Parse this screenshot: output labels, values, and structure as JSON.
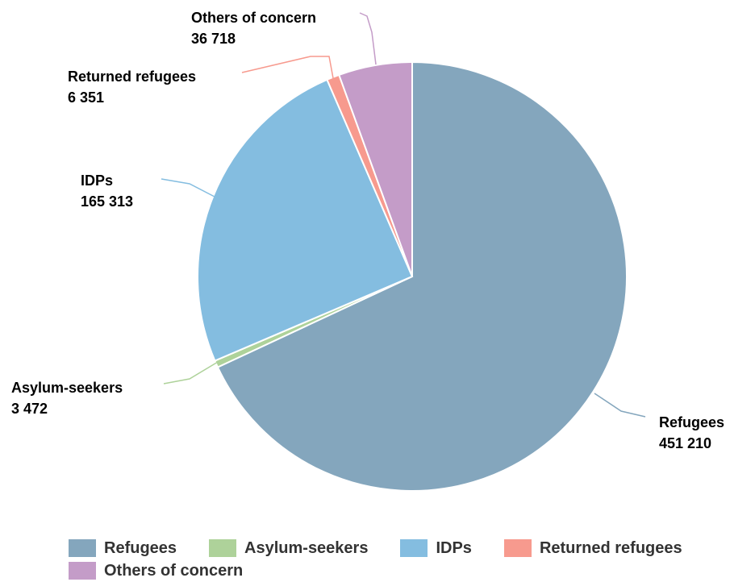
{
  "chart_data": {
    "type": "pie",
    "slices": [
      {
        "name": "Refugees",
        "value": 451210,
        "label_value": "451 210",
        "color": "#84A6BD"
      },
      {
        "name": "Asylum-seekers",
        "value": 3472,
        "label_value": "3 472",
        "color": "#AED29A"
      },
      {
        "name": "IDPs",
        "value": 165313,
        "label_value": "165 313",
        "color": "#84BDE0"
      },
      {
        "name": "Returned refugees",
        "value": 6351,
        "label_value": "6 351",
        "color": "#F79A8E"
      },
      {
        "name": "Others of concern",
        "value": 36718,
        "label_value": "36 718",
        "color": "#C49CC8"
      }
    ],
    "legend_placement": "bottom"
  }
}
